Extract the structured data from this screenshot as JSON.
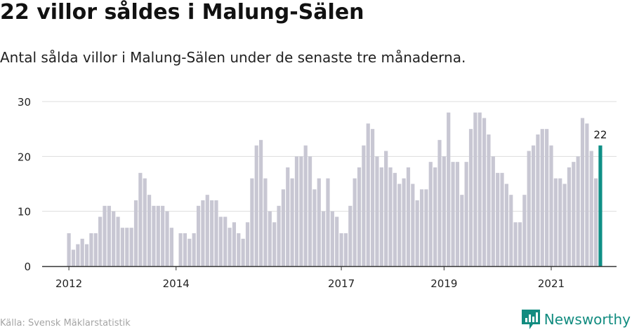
{
  "title": "22 villor såldes i Malung-Sälen",
  "subtitle": "Antal sålda villor i Malung-Sälen under de senaste tre månaderna.",
  "source": "Källa: Svensk Mäklarstatistik",
  "brand": "Newsworthy",
  "colors": {
    "bar": "#c8c7d3",
    "highlight": "#0f8f86",
    "grid": "#dddddd",
    "axis": "#333333",
    "text": "#222222"
  },
  "chart_data": {
    "type": "bar",
    "title": "22 villor såldes i Malung-Sälen",
    "xlabel": "",
    "ylabel": "",
    "ylim": [
      0,
      30
    ],
    "yticks": [
      0,
      10,
      20,
      30
    ],
    "grid": true,
    "x_tick_labels": [
      {
        "label": "2012",
        "index": 0
      },
      {
        "label": "2014",
        "index": 24
      },
      {
        "label": "2017",
        "index": 61
      },
      {
        "label": "2019",
        "index": 84
      },
      {
        "label": "2021",
        "index": 108
      }
    ],
    "values": [
      6,
      3,
      4,
      5,
      4,
      6,
      6,
      9,
      11,
      11,
      10,
      9,
      7,
      7,
      7,
      12,
      17,
      16,
      13,
      11,
      11,
      11,
      10,
      7,
      0,
      6,
      6,
      5,
      6,
      11,
      12,
      13,
      12,
      12,
      9,
      9,
      7,
      8,
      6,
      5,
      8,
      16,
      22,
      23,
      16,
      10,
      8,
      11,
      14,
      18,
      16,
      20,
      20,
      22,
      20,
      14,
      16,
      10,
      16,
      10,
      9,
      6,
      6,
      11,
      16,
      18,
      22,
      26,
      25,
      20,
      18,
      21,
      18,
      17,
      15,
      16,
      18,
      15,
      12,
      14,
      14,
      19,
      18,
      23,
      20,
      28,
      19,
      19,
      13,
      19,
      25,
      28,
      28,
      27,
      24,
      20,
      17,
      17,
      15,
      13,
      8,
      8,
      13,
      21,
      22,
      24,
      25,
      25,
      22,
      16,
      16,
      15,
      18,
      19,
      20,
      27,
      26,
      21,
      16,
      22
    ],
    "highlight_index": 119,
    "highlight_label": "22"
  }
}
